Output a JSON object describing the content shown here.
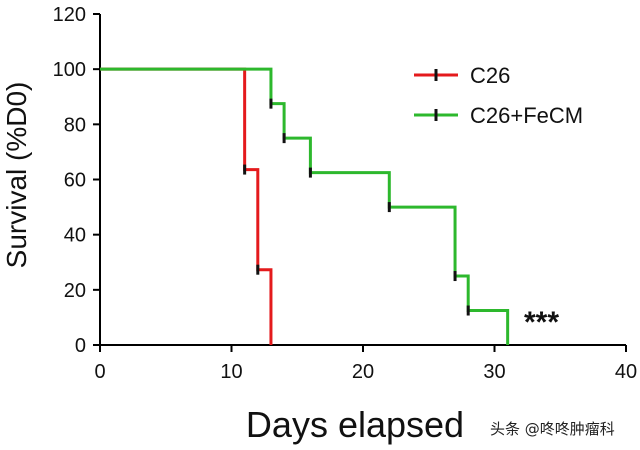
{
  "chart_data": {
    "type": "line",
    "step": true,
    "title": "",
    "xlabel": "Days elapsed",
    "ylabel": "Survival (%D0)",
    "xlim": [
      0,
      40
    ],
    "ylim": [
      0,
      120
    ],
    "xticks": [
      0,
      10,
      20,
      30,
      40
    ],
    "yticks": [
      0,
      20,
      40,
      60,
      80,
      100,
      120
    ],
    "grid": false,
    "legend_position": "top-right",
    "series": [
      {
        "name": "C26",
        "color": "#e41a1c",
        "x": [
          0,
          11,
          12,
          13
        ],
        "y": [
          100,
          63.6,
          27.3,
          0
        ]
      },
      {
        "name": "C26+FeCM",
        "color": "#2db82d",
        "x": [
          0,
          13,
          14,
          16,
          22,
          27,
          28,
          31
        ],
        "y": [
          100,
          87.5,
          75,
          62.5,
          50,
          25,
          12.5,
          0
        ]
      }
    ],
    "annotations": [
      "***"
    ]
  },
  "watermark": "头条 @咚咚肿瘤科"
}
